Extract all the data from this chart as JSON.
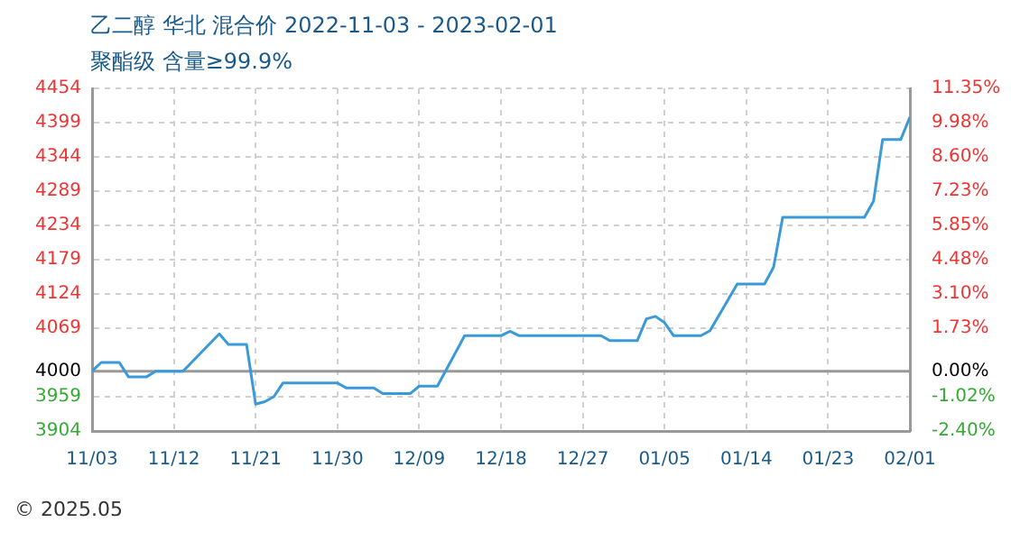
{
  "chart_data": {
    "type": "line",
    "title": "乙二醇 华北 混合价 2022-11-03 - 2023-02-01",
    "subtitle": "聚酯级 含量≥99.9%",
    "x": [
      "2022-11-03",
      "2022-11-04",
      "2022-11-06",
      "2022-11-07",
      "2022-11-09",
      "2022-11-10",
      "2022-11-13",
      "2022-11-17",
      "2022-11-18",
      "2022-11-20",
      "2022-11-21",
      "2022-11-22",
      "2022-11-23",
      "2022-11-24",
      "2022-11-30",
      "2022-12-01",
      "2022-12-04",
      "2022-12-05",
      "2022-12-08",
      "2022-12-09",
      "2022-12-11",
      "2022-12-14",
      "2022-12-18",
      "2022-12-19",
      "2022-12-20",
      "2022-12-29",
      "2022-12-30",
      "2023-01-02",
      "2023-01-03",
      "2023-01-04",
      "2023-01-05",
      "2023-01-06",
      "2023-01-09",
      "2023-01-10",
      "2023-01-13",
      "2023-01-16",
      "2023-01-17",
      "2023-01-18",
      "2023-01-27",
      "2023-01-28",
      "2023-01-29",
      "2023-01-31",
      "2023-02-01"
    ],
    "series": [
      {
        "color": "#3a9ad9",
        "values": [
          4000,
          4014,
          4014,
          3991,
          3991,
          4000,
          4000,
          4060,
          4043,
          4043,
          3947,
          3951,
          3959,
          3981,
          3981,
          3973,
          3973,
          3964,
          3964,
          3976,
          3976,
          4057,
          4057,
          4064,
          4057,
          4057,
          4049,
          4049,
          4084,
          4088,
          4078,
          4057,
          4057,
          4065,
          4140,
          4140,
          4167,
          4247,
          4247,
          4273,
          4372,
          4372,
          4408
        ]
      }
    ],
    "xlim": [
      "2022-11-03",
      "2023-02-01"
    ],
    "xticks": [
      {
        "value": "2022-11-03",
        "label": "11/03"
      },
      {
        "value": "2022-11-12",
        "label": "11/12"
      },
      {
        "value": "2022-11-21",
        "label": "11/21"
      },
      {
        "value": "2022-11-30",
        "label": "11/30"
      },
      {
        "value": "2022-12-09",
        "label": "12/09"
      },
      {
        "value": "2022-12-18",
        "label": "12/18"
      },
      {
        "value": "2022-12-27",
        "label": "12/27"
      },
      {
        "value": "2023-01-05",
        "label": "01/05"
      },
      {
        "value": "2023-01-14",
        "label": "01/14"
      },
      {
        "value": "2023-01-23",
        "label": "01/23"
      },
      {
        "value": "2023-02-01",
        "label": "02/01"
      }
    ],
    "ylim": [
      3904,
      4454
    ],
    "yticks": [
      3904,
      3959,
      4000,
      4069,
      4124,
      4179,
      4234,
      4289,
      4344,
      4399,
      4454
    ],
    "y2lim": [
      -2.4,
      11.35
    ],
    "y2ticks": [
      {
        "value": -2.4,
        "label": "-2.40%"
      },
      {
        "value": -1.02,
        "label": "-1.02%"
      },
      {
        "value": 0,
        "label": "0.00%"
      },
      {
        "value": 1.73,
        "label": "1.73%"
      },
      {
        "value": 3.1,
        "label": "3.10%"
      },
      {
        "value": 4.48,
        "label": "4.48%"
      },
      {
        "value": 5.85,
        "label": "5.85%"
      },
      {
        "value": 7.23,
        "label": "7.23%"
      },
      {
        "value": 8.6,
        "label": "8.60%"
      },
      {
        "value": 9.98,
        "label": "9.98%"
      },
      {
        "value": 11.35,
        "label": "11.35%"
      }
    ],
    "ref_lines": [
      {
        "axis": "y",
        "value": 4000,
        "color": "#999999"
      }
    ],
    "grid": true,
    "legend": false,
    "marker": "none",
    "line_style": "solid",
    "annotations": [
      "© 2025.05"
    ]
  }
}
